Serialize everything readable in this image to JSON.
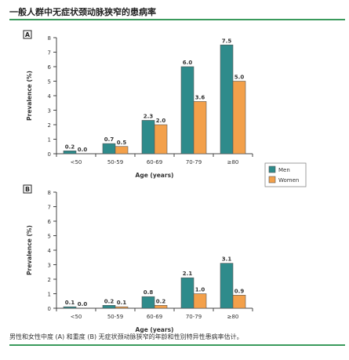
{
  "figure": {
    "title": "一般人群中无症状颈动脉狭窄的患病率",
    "caption": "男性和女性中度 (A) 和重度 (B) 无症状颈动脉狭窄的年龄和性别特异性患病率估计。"
  },
  "colors": {
    "men": "#2e8b8b",
    "women": "#f3a04a",
    "axis": "#444444"
  },
  "chart_data": [
    {
      "type": "bar",
      "panel": "A",
      "categories": [
        "<50",
        "50-59",
        "60-69",
        "70-79",
        "≥80"
      ],
      "series": [
        {
          "name": "Men",
          "values": [
            0.2,
            0.7,
            2.3,
            6.0,
            7.5
          ],
          "labels": [
            "0.2",
            "0.7",
            "2.3",
            "6.0",
            "7.5"
          ]
        },
        {
          "name": "Women",
          "values": [
            0.0,
            0.5,
            2.0,
            3.6,
            5.0
          ],
          "labels": [
            "0.0",
            "0.5",
            "2.0",
            "3.6",
            "5.0"
          ]
        }
      ],
      "xlabel": "Age (years)",
      "ylabel": "Prevalence (%)",
      "ylim": [
        0,
        8
      ],
      "yticks": [
        "0",
        "1",
        "2",
        "3",
        "4",
        "5",
        "6",
        "7",
        "8"
      ],
      "legend": "right"
    },
    {
      "type": "bar",
      "panel": "B",
      "categories": [
        "<50",
        "50-59",
        "60-69",
        "70-79",
        "≥80"
      ],
      "series": [
        {
          "name": "Men",
          "values": [
            0.1,
            0.2,
            0.8,
            2.1,
            3.1
          ],
          "labels": [
            "0.1",
            "0.2",
            "0.8",
            "2.1",
            "3.1"
          ]
        },
        {
          "name": "Women",
          "values": [
            0.0,
            0.1,
            0.2,
            1.0,
            0.9
          ],
          "labels": [
            "0.0",
            "0.1",
            "0.2",
            "1.0",
            "0.9"
          ]
        }
      ],
      "xlabel": "Age (years)",
      "ylabel": "Prevalence (%)",
      "ylim": [
        0,
        8
      ],
      "yticks": [
        "0",
        "1",
        "2",
        "3",
        "4",
        "5",
        "6",
        "7",
        "8"
      ],
      "legend": "none"
    }
  ]
}
